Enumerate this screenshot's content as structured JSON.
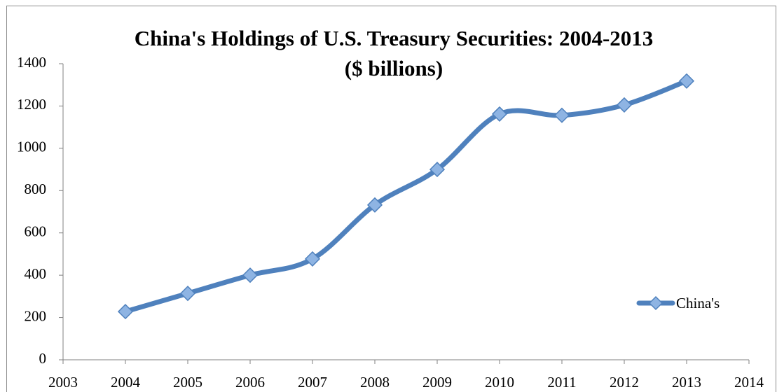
{
  "chart_data": {
    "type": "line",
    "title": "China's Holdings of U.S. Treasury Securities: 2004-2013",
    "subtitle": "($ billions)",
    "x": [
      2004,
      2005,
      2006,
      2007,
      2008,
      2009,
      2010,
      2011,
      2012,
      2013
    ],
    "series": [
      {
        "name": "China's",
        "color": "#4f81bd",
        "values": [
          228,
          314,
          400,
          477,
          732,
          900,
          1162,
          1156,
          1205,
          1318
        ]
      }
    ],
    "xlim": [
      2003,
      2014
    ],
    "xticks": [
      2003,
      2004,
      2005,
      2006,
      2007,
      2008,
      2009,
      2010,
      2011,
      2012,
      2013,
      2014
    ],
    "ylim": [
      0,
      1400
    ],
    "yticks": [
      0,
      200,
      400,
      600,
      800,
      1000,
      1200,
      1400
    ],
    "grid": false,
    "smooth": true,
    "marker": "diamond",
    "legend": "right"
  }
}
